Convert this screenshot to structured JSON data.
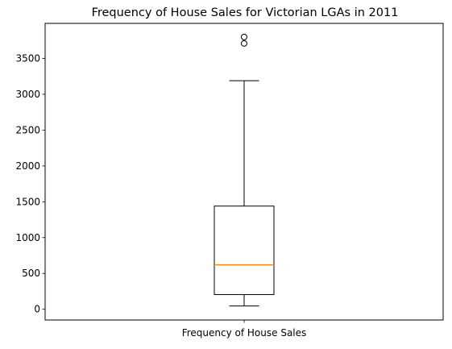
{
  "chart_data": {
    "type": "boxplot",
    "title": "Frequency of House Sales for Victorian LGAs in 2011",
    "categories": [
      "Frequency of House Sales"
    ],
    "xlabel": "",
    "ylabel": "",
    "ylim": [
      -150,
      3990
    ],
    "yticks": [
      0,
      500,
      1000,
      1500,
      2000,
      2500,
      3000,
      3500
    ],
    "grid": false,
    "legend": "none",
    "box": {
      "whisker_low": 45,
      "q1": 205,
      "median": 620,
      "q3": 1440,
      "whisker_high": 3190,
      "outliers": [
        3710,
        3800
      ]
    },
    "colors": {
      "box": "#000000",
      "median": "#ff7f0e",
      "outlier": "#000000"
    }
  }
}
